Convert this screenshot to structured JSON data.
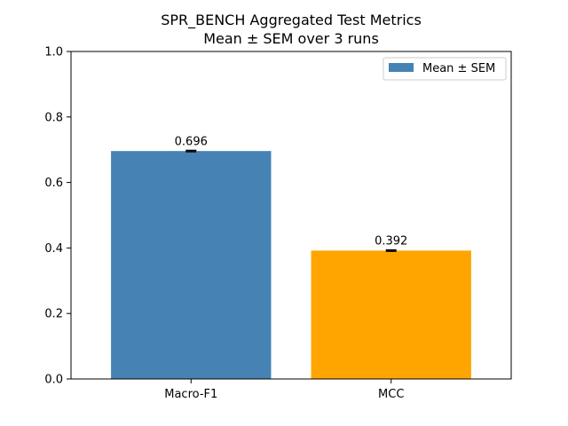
{
  "chart_data": {
    "type": "bar",
    "title": "SPR_BENCH Aggregated Test Metrics",
    "subtitle": "Mean ± SEM over 3 runs",
    "xlabel": "",
    "ylabel": "",
    "categories": [
      "Macro-F1",
      "MCC"
    ],
    "values": [
      0.696,
      0.392
    ],
    "value_labels": [
      "0.696",
      "0.392"
    ],
    "errors": [
      0.002,
      0.002
    ],
    "colors": [
      "#4682b4",
      "#ffa500"
    ],
    "ylim": [
      0,
      1.0
    ],
    "yticks": [
      0.0,
      0.2,
      0.4,
      0.6,
      0.8,
      1.0
    ],
    "ytick_labels": [
      "0.0",
      "0.2",
      "0.4",
      "0.6",
      "0.8",
      "1.0"
    ],
    "legend": {
      "label": "Mean ± SEM",
      "color": "#4682b4",
      "placement": "top-right"
    },
    "grid": false
  }
}
